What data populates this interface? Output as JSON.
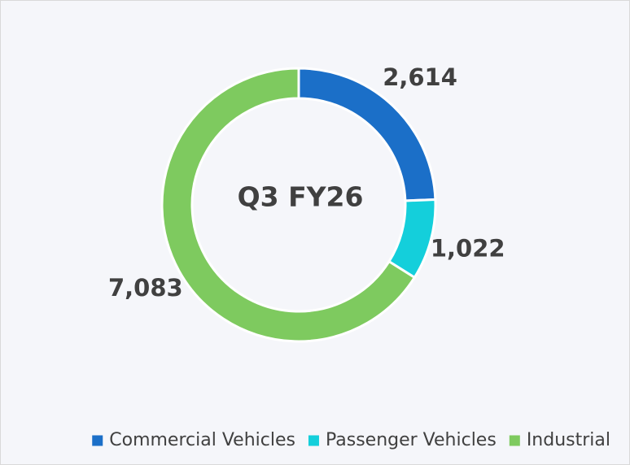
{
  "chart_data": {
    "type": "pie",
    "center_label": "Q3 FY26",
    "categories": [
      "Commercial Vehicles",
      "Passenger Vehicles",
      "Industrial"
    ],
    "values": [
      2614,
      1022,
      7083
    ],
    "value_labels": [
      "2,614",
      "1,022",
      "7,083"
    ],
    "colors": [
      "#1b6fc8",
      "#14cfdb",
      "#7eca5f"
    ],
    "donut": true,
    "legend": "bottom"
  }
}
